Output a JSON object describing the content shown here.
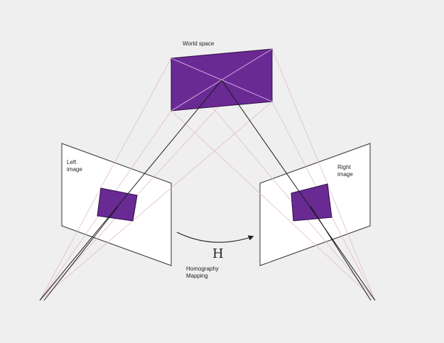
{
  "labels": {
    "world_space": "World space",
    "left_image_line1": "Left",
    "left_image_line2": "image",
    "right_image_line1": "Right",
    "right_image_line2": "image",
    "homography_symbol": "H",
    "homography_line1": "Homography",
    "homography_line2": "Mapping"
  },
  "colors": {
    "background": "#efefef",
    "plane_fill": "#6a2a94",
    "plane_stroke": "#2e0d45",
    "image_plane_fill": "#ffffff",
    "image_plane_stroke": "#333333",
    "projection_ray": "#e0b8c0",
    "center_ray": "#1a1a1a",
    "arrow": "#222222"
  },
  "icons": {
    "mapping_arrow": "curved-arrow-right"
  }
}
